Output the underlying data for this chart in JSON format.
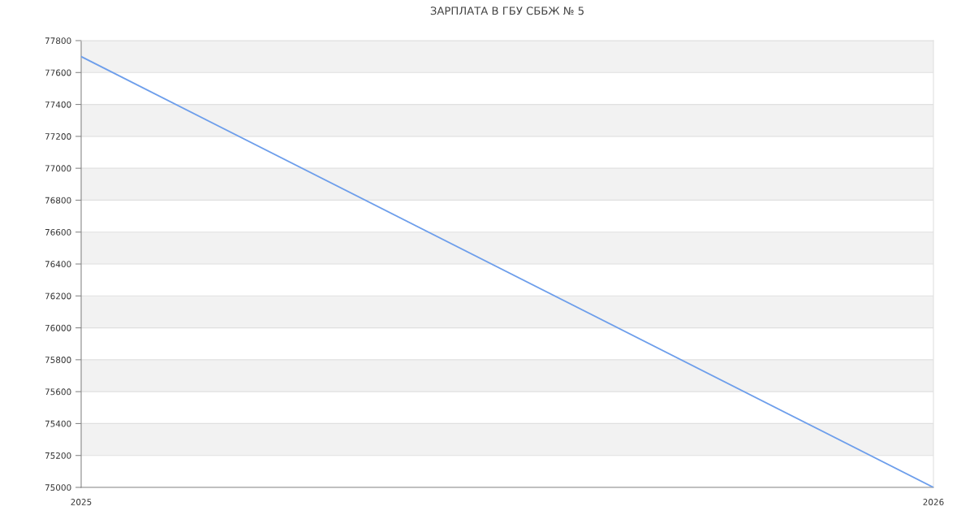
{
  "chart_data": {
    "type": "line",
    "title": "ЗАРПЛАТА В ГБУ СББЖ № 5",
    "x": [
      2025,
      2026
    ],
    "series": [
      {
        "color": "#6d9eeb",
        "values": [
          77700,
          75000
        ]
      }
    ],
    "xlim": [
      2025,
      2026
    ],
    "xticks": [
      2025,
      2026
    ],
    "ylim": [
      75000,
      77800
    ],
    "yticks": [
      75000,
      75200,
      75400,
      75600,
      75800,
      76000,
      76200,
      76400,
      76600,
      76800,
      77000,
      77200,
      77400,
      77600,
      77800
    ],
    "grid": "y",
    "marker": "none",
    "line_style": "solid"
  }
}
